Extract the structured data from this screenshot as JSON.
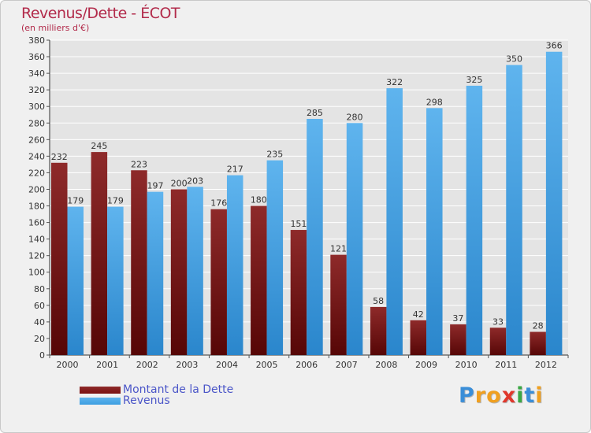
{
  "title": "Revenus/Dette - ÉCOT",
  "subtitle": "(en milliers d'€)",
  "colors": {
    "dette": "#7a1010",
    "revenus": "#3c9de0",
    "title": "#b22a4a",
    "legend_text": "#4a55c8"
  },
  "legend": {
    "dette_label": "Montant de la Dette",
    "revenus_label": "Revenus"
  },
  "logo": {
    "letters": [
      "P",
      "r",
      "o",
      "x",
      "i",
      "t",
      "i"
    ],
    "colors": [
      "#3a8ed8",
      "#f0a020",
      "#f0a020",
      "#e0382c",
      "#3aa844",
      "#3a8ed8",
      "#f0a020"
    ]
  },
  "chart_data": {
    "type": "bar",
    "title": "Revenus/Dette - ÉCOT",
    "ylabel": "(en milliers d'€)",
    "xlabel": "",
    "categories": [
      "2000",
      "2001",
      "2002",
      "2003",
      "2004",
      "2005",
      "2006",
      "2007",
      "2008",
      "2009",
      "2010",
      "2011",
      "2012"
    ],
    "series": [
      {
        "name": "Montant de la Dette",
        "values": [
          232,
          245,
          223,
          200,
          176,
          180,
          151,
          121,
          58,
          42,
          37,
          33,
          28
        ]
      },
      {
        "name": "Revenus",
        "values": [
          179,
          179,
          197,
          203,
          217,
          235,
          285,
          280,
          322,
          298,
          325,
          350,
          366
        ]
      }
    ],
    "ylim": [
      0,
      380
    ],
    "ytick_step": 20,
    "grid": true,
    "legend_position": "bottom-left"
  }
}
